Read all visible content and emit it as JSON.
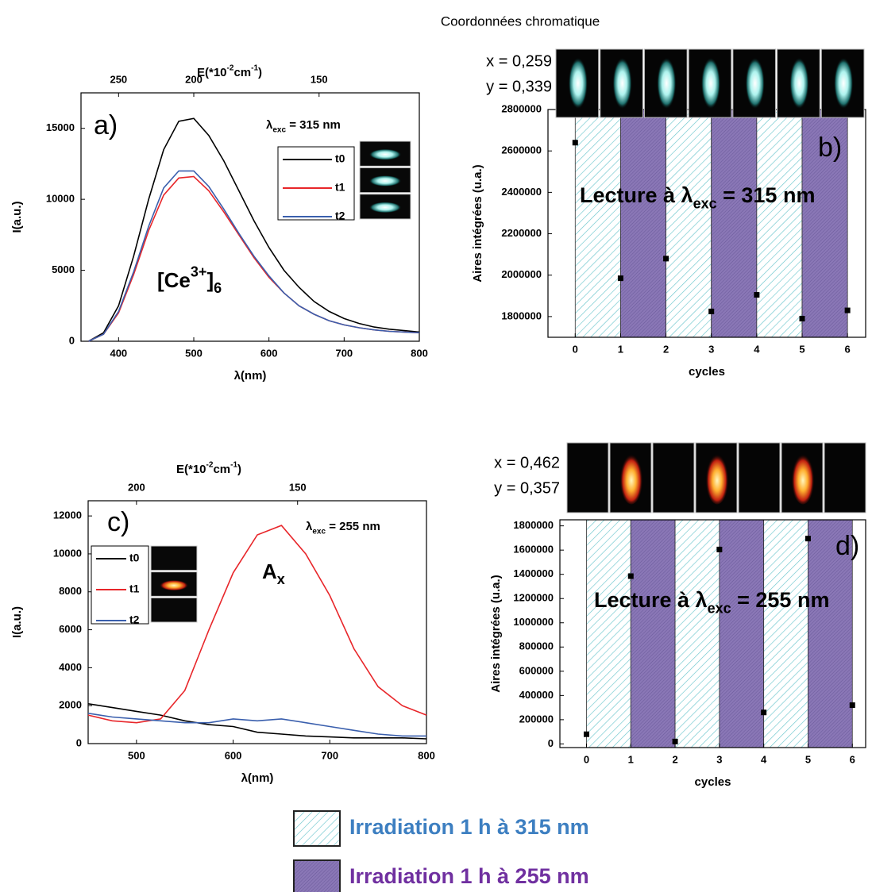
{
  "header": {
    "title": "Coordonnées chromatique"
  },
  "chromaticity": [
    {
      "x": "x = 0,259",
      "y": "y = 0,339"
    },
    {
      "x": "x = 0,462",
      "y": "y = 0,357"
    }
  ],
  "irradiation_legend": [
    {
      "label": "Irradiation 1 h à 315 nm",
      "color": "#6cc6cd",
      "text_color": "#3d7fc1"
    },
    {
      "label": "Irradiation 1 h à 255 nm",
      "color": "#8a77b6",
      "text_color": "#7030a0"
    }
  ],
  "chart_data": [
    {
      "type": "line",
      "panel_label": "a)",
      "x_label": "λ(nm)",
      "y_label": "I(a.u.)",
      "top_axis_label": {
        "base": "E(*10",
        "sup1": "-2",
        "mid": "cm",
        "sup2": "-1",
        "close": ")"
      },
      "top_xticks": [
        250,
        200,
        150
      ],
      "exc_label": {
        "lambda": "λ",
        "sub": "exc",
        "rest": " = 315 nm"
      },
      "species": {
        "open": "[Ce",
        "sup": "3+",
        "close": "]",
        "sub": "6"
      },
      "x": [
        360,
        380,
        400,
        420,
        440,
        460,
        480,
        500,
        520,
        540,
        560,
        580,
        600,
        620,
        640,
        660,
        680,
        700,
        720,
        740,
        760,
        780,
        800
      ],
      "series": [
        {
          "name": "t0",
          "color": "#000000",
          "values": [
            0,
            600,
            2500,
            6000,
            10000,
            13500,
            15500,
            15700,
            14500,
            12700,
            10600,
            8500,
            6600,
            5000,
            3800,
            2800,
            2100,
            1600,
            1250,
            1000,
            850,
            750,
            650
          ]
        },
        {
          "name": "t1",
          "color": "#e8262a",
          "values": [
            0,
            500,
            2000,
            4700,
            7800,
            10300,
            11500,
            11600,
            10600,
            9100,
            7500,
            5900,
            4500,
            3400,
            2500,
            1900,
            1450,
            1150,
            950,
            800,
            700,
            650,
            600
          ]
        },
        {
          "name": "t2",
          "color": "#3a5fad",
          "values": [
            0,
            500,
            2100,
            4900,
            8100,
            10800,
            12000,
            12000,
            10900,
            9300,
            7600,
            6000,
            4600,
            3400,
            2500,
            1900,
            1450,
            1150,
            950,
            800,
            700,
            650,
            600
          ]
        }
      ],
      "xlim": [
        350,
        800
      ],
      "ylim": [
        0,
        17500
      ],
      "xticks": [
        400,
        500,
        600,
        700,
        800
      ],
      "yticks": [
        0,
        5000,
        10000,
        15000
      ]
    },
    {
      "type": "scatter",
      "panel_label": "b)",
      "x_label": "cycles",
      "y_label": "Aires intégrées (u.a.)",
      "reading": {
        "base": "Lecture à λ",
        "sub": "exc",
        "rest": " = 315 nm"
      },
      "x": [
        0,
        1,
        2,
        3,
        4,
        5,
        6
      ],
      "values": [
        2640000,
        1985000,
        2080000,
        1825000,
        1905000,
        1790000,
        1830000
      ],
      "color": "#000000",
      "xlim": [
        -0.6,
        6.4
      ],
      "ylim": [
        1700000,
        2800000
      ],
      "xticks": [
        0,
        1,
        2,
        3,
        4,
        5,
        6
      ],
      "yticks": [
        1800000,
        2000000,
        2200000,
        2400000,
        2600000,
        2800000
      ]
    },
    {
      "type": "line",
      "panel_label": "c)",
      "x_label": "λ(nm)",
      "y_label": "I(a.u.)",
      "top_axis_label": {
        "base": "E(*10",
        "sup1": "-2",
        "mid": "cm",
        "sup2": "-1",
        "close": ")"
      },
      "top_xticks": [
        200,
        150
      ],
      "exc_label": {
        "lambda": "λ",
        "sub": "exc",
        "rest": " = 255 nm"
      },
      "species": {
        "base": "A",
        "sub": "x"
      },
      "x": [
        450,
        475,
        500,
        525,
        550,
        575,
        600,
        625,
        650,
        675,
        700,
        725,
        750,
        775,
        800
      ],
      "series": [
        {
          "name": "t0",
          "color": "#000000",
          "values": [
            2100,
            1900,
            1700,
            1500,
            1200,
            1000,
            900,
            600,
            500,
            400,
            350,
            300,
            300,
            300,
            250
          ]
        },
        {
          "name": "t1",
          "color": "#e8262a",
          "values": [
            1500,
            1200,
            1100,
            1300,
            2800,
            6000,
            9000,
            11000,
            11500,
            10000,
            7800,
            5000,
            3000,
            2000,
            1500
          ]
        },
        {
          "name": "t2",
          "color": "#3a5fad",
          "values": [
            1600,
            1400,
            1300,
            1200,
            1100,
            1100,
            1300,
            1200,
            1300,
            1100,
            900,
            700,
            500,
            400,
            400
          ]
        }
      ],
      "xlim": [
        450,
        800
      ],
      "ylim": [
        0,
        12800
      ],
      "xticks": [
        500,
        600,
        700,
        800
      ],
      "yticks": [
        0,
        2000,
        4000,
        6000,
        8000,
        10000,
        12000
      ]
    },
    {
      "type": "scatter",
      "panel_label": "d)",
      "x_label": "cycles",
      "y_label": "Aires intégrées (u.a.)",
      "reading": {
        "base": "Lecture à λ",
        "sub": "exc",
        "rest": " = 255 nm"
      },
      "x": [
        0,
        1,
        2,
        3,
        4,
        5,
        6
      ],
      "values": [
        80000,
        1385000,
        20000,
        1605000,
        260000,
        1695000,
        320000
      ],
      "color": "#000000",
      "xlim": [
        -0.6,
        6.3
      ],
      "ylim": [
        -30000,
        1850000
      ],
      "xticks": [
        0,
        1,
        2,
        3,
        4,
        5,
        6
      ],
      "yticks": [
        0,
        200000,
        400000,
        600000,
        800000,
        1000000,
        1200000,
        1400000,
        1600000,
        1800000
      ]
    }
  ]
}
